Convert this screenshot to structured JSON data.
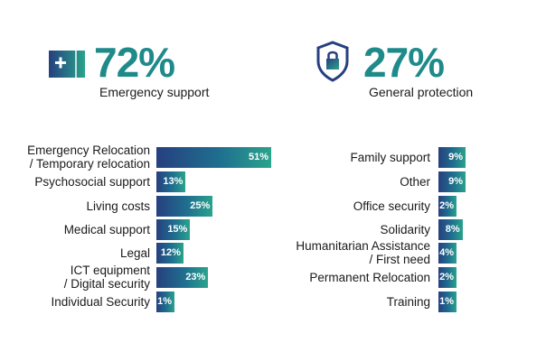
{
  "kpis": [
    {
      "value": "72%",
      "label": "Emergency support",
      "icon": "medical-kit-icon"
    },
    {
      "value": "27%",
      "label": "General protection",
      "icon": "shield-lock-icon"
    }
  ],
  "colors": {
    "teal": "#1f8a8a",
    "bar_start": "#26407f",
    "bar_end": "#2aa38c"
  },
  "chart_data": [
    {
      "type": "bar",
      "orientation": "horizontal",
      "categories": [
        "Emergency Relocation\n/ Temporary relocation",
        "Psychosocial support",
        "Living costs",
        "Medical support",
        "Legal",
        "ICT equipment\n/ Digital security",
        "Individual Security"
      ],
      "values": [
        51,
        13,
        25,
        15,
        12,
        23,
        1
      ],
      "value_labels": [
        "51%",
        "13%",
        "25%",
        "15%",
        "12%",
        "23%",
        "1%"
      ]
    },
    {
      "type": "bar",
      "orientation": "horizontal",
      "categories": [
        "Family support",
        "Other",
        "Office security",
        "Solidarity",
        "Humanitarian Assistance\n/ First need",
        "Permanent Relocation",
        "Training"
      ],
      "values": [
        9,
        9,
        2,
        8,
        4,
        2,
        1
      ],
      "value_labels": [
        "9%",
        "9%",
        "2%",
        "8%",
        "4%",
        "2%",
        "1%"
      ]
    }
  ]
}
